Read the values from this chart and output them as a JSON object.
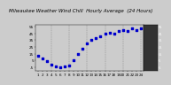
{
  "title": "Milwaukee Weather Wind Chill  Hourly Average  (24 Hours)",
  "hours": [
    1,
    2,
    3,
    4,
    5,
    6,
    7,
    8,
    9,
    10,
    11,
    12,
    13,
    14,
    15,
    16,
    17,
    18,
    19,
    20,
    21,
    22,
    23,
    24
  ],
  "wind_chill": [
    12,
    8,
    4,
    -1,
    -4,
    -5,
    -4,
    -2,
    6,
    14,
    22,
    30,
    35,
    38,
    41,
    44,
    46,
    44,
    48,
    50,
    48,
    52,
    50,
    53
  ],
  "dot_color": "#0000cc",
  "bg_color": "#cccccc",
  "plot_bg": "#cccccc",
  "grid_color": "#666666",
  "grid_positions": [
    4,
    8,
    12,
    16,
    20,
    24
  ],
  "ylim": [
    -10,
    58
  ],
  "ytick_vals": [
    -5,
    5,
    15,
    25,
    35,
    45,
    55
  ],
  "ytick_labels": [
    "-5",
    "5",
    "15",
    "25",
    "35",
    "45",
    "55"
  ],
  "xtick_vals": [
    1,
    2,
    3,
    4,
    5,
    6,
    7,
    8,
    9,
    10,
    11,
    12,
    13,
    14,
    15,
    16,
    17,
    18,
    19,
    20,
    21,
    22,
    23,
    24
  ],
  "title_fontsize": 4.0,
  "tick_fontsize": 3.0,
  "dot_size": 1.5,
  "right_panel_color": "#333333",
  "right_ytick_fontsize": 2.5
}
